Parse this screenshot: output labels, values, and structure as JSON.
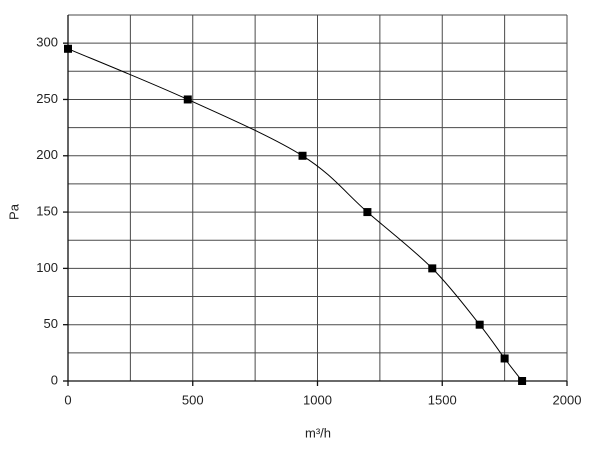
{
  "chart_data": {
    "type": "line",
    "x_label": "m³/h",
    "y_label": "Pa",
    "x": [
      0,
      480,
      940,
      1200,
      1460,
      1650,
      1750,
      1820
    ],
    "series": [
      {
        "color": "#000000",
        "values": [
          295,
          250,
          200,
          150,
          100,
          50,
          20,
          0
        ]
      }
    ],
    "xlim": [
      0,
      2000
    ],
    "xticks": [
      0,
      500,
      1000,
      1500,
      2000
    ],
    "xminor": [
      250,
      750,
      1250,
      1750
    ],
    "ylim": [
      0,
      325
    ],
    "yticks": [
      0,
      50,
      100,
      150,
      200,
      250,
      300
    ],
    "yminor": [
      25,
      75,
      125,
      175,
      225,
      275,
      325
    ],
    "grid": true,
    "markers": "square"
  }
}
